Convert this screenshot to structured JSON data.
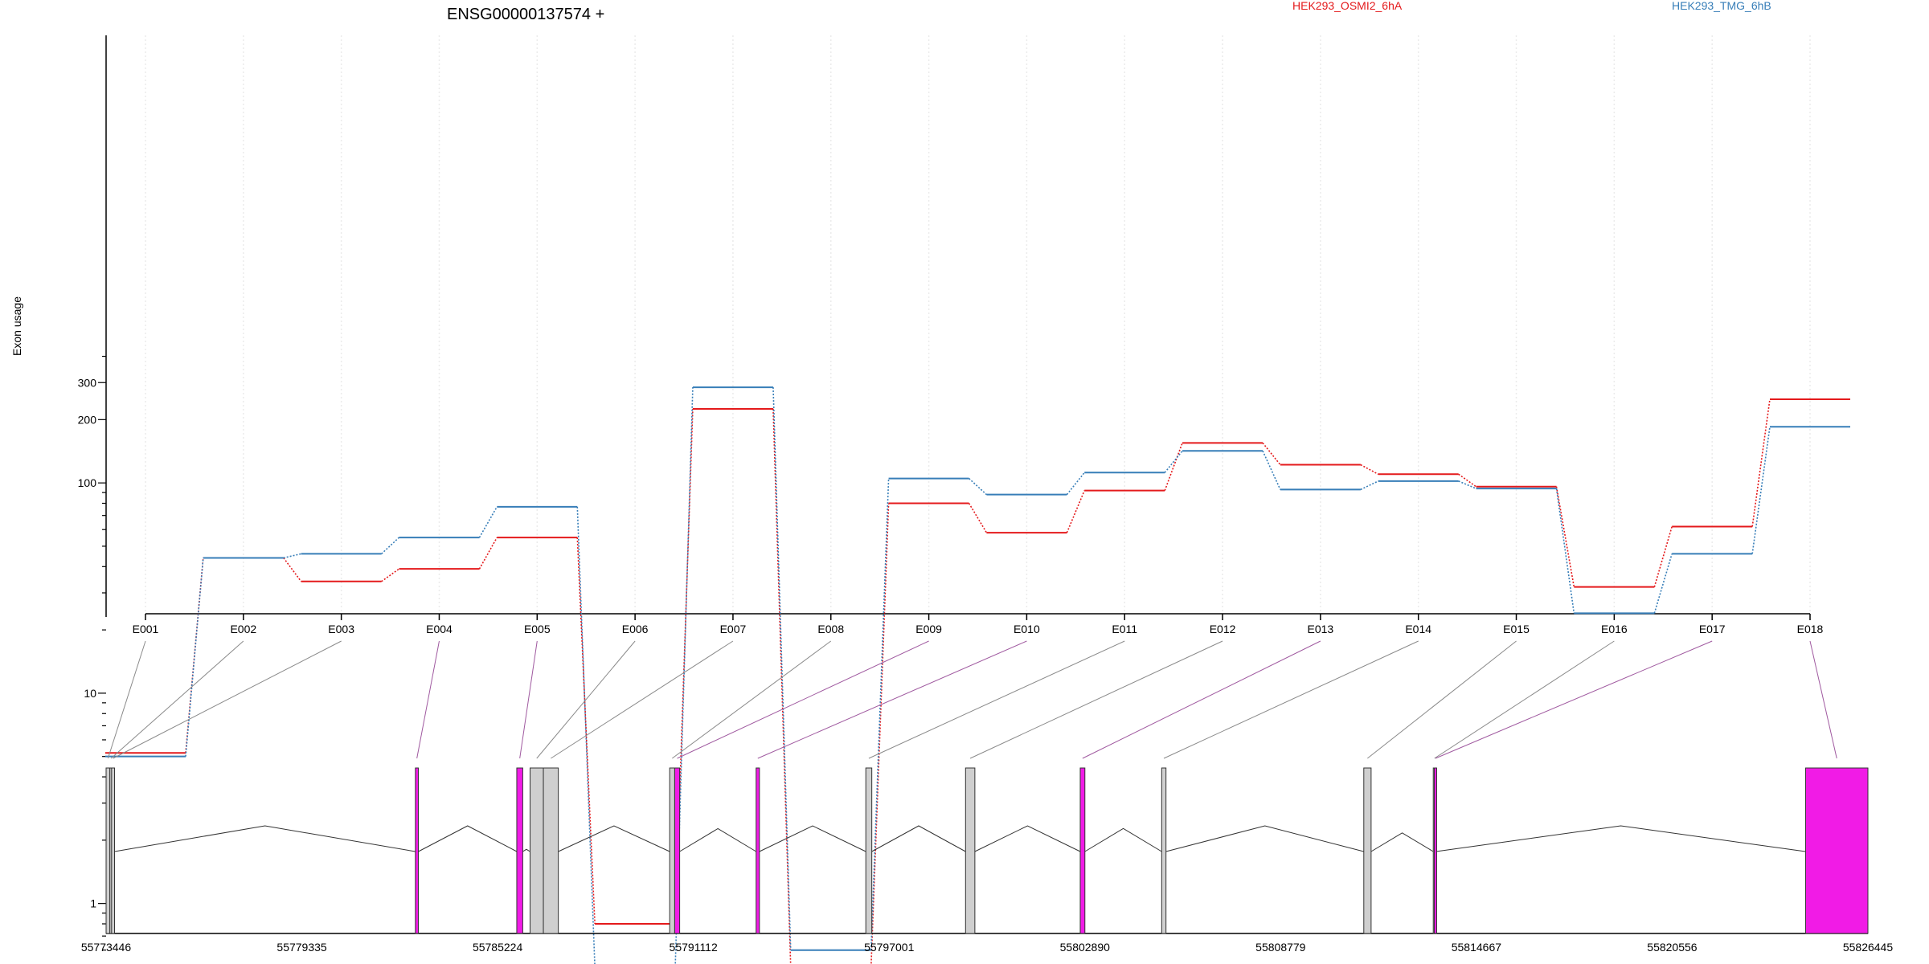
{
  "chart_data": {
    "type": "line",
    "title": "ENSG00000137574 +",
    "ylabel": "Exon usage",
    "xlabel": "",
    "y_scale": "log",
    "ylim": [
      0.5,
      400
    ],
    "y_ticks": [
      1,
      10,
      100,
      200,
      300
    ],
    "grid": "vertical, light",
    "legend_position": "top-right",
    "categories": [
      "E001",
      "E002",
      "E003",
      "E004",
      "E005",
      "E006",
      "E007",
      "E008",
      "E009",
      "E010",
      "E011",
      "E012",
      "E013",
      "E014",
      "E015",
      "E016",
      "E017",
      "E018"
    ],
    "series": [
      {
        "name": "HEK293_OSMI2_6hA",
        "color": "#e41a1c",
        "values": [
          5.2,
          44,
          34,
          39,
          55,
          0.8,
          225,
          0.5,
          80,
          58,
          92,
          155,
          122,
          110,
          96,
          32,
          62,
          250
        ]
      },
      {
        "name": "HEK293_TMG_6hB",
        "color": "#377eb8",
        "values": [
          5.0,
          44,
          46,
          55,
          77,
          0.5,
          285,
          0.6,
          105,
          88,
          112,
          142,
          93,
          102,
          94,
          24,
          46,
          185
        ]
      }
    ],
    "gene_model": {
      "axis_labels": [
        "55773446",
        "55779335",
        "55785224",
        "55791112",
        "55797001",
        "55802890",
        "55808779",
        "55814667",
        "55820556",
        "55826445"
      ],
      "axis_range": [
        55773446,
        55826445
      ],
      "exon_color_significant": "#f11be6",
      "exon_color_normal": "#cfcfcf",
      "exons": [
        {
          "id": "E001",
          "start": 55773446,
          "end": 55773560,
          "significant": false
        },
        {
          "id": "E002",
          "start": 55773560,
          "end": 55773610,
          "significant": false
        },
        {
          "id": "E003",
          "start": 55773610,
          "end": 55773700,
          "significant": false
        },
        {
          "id": "E004",
          "start": 55782750,
          "end": 55782840,
          "significant": true
        },
        {
          "id": "E005",
          "start": 55785800,
          "end": 55785980,
          "significant": true
        },
        {
          "id": "E006",
          "start": 55786200,
          "end": 55786600,
          "significant": false
        },
        {
          "id": "E007",
          "start": 55786600,
          "end": 55787050,
          "significant": false
        },
        {
          "id": "E008",
          "start": 55790400,
          "end": 55790550,
          "significant": false
        },
        {
          "id": "E009",
          "start": 55790550,
          "end": 55790700,
          "significant": true
        },
        {
          "id": "E010",
          "start": 55793000,
          "end": 55793100,
          "significant": true
        },
        {
          "id": "E011",
          "start": 55796300,
          "end": 55796480,
          "significant": false
        },
        {
          "id": "E012",
          "start": 55799300,
          "end": 55799580,
          "significant": false
        },
        {
          "id": "E013",
          "start": 55802750,
          "end": 55802890,
          "significant": true
        },
        {
          "id": "E014",
          "start": 55805200,
          "end": 55805330,
          "significant": false
        },
        {
          "id": "E015",
          "start": 55811280,
          "end": 55811500,
          "significant": false
        },
        {
          "id": "E016",
          "start": 55813370,
          "end": 55813400,
          "significant": false
        },
        {
          "id": "E017",
          "start": 55813400,
          "end": 55813450,
          "significant": true
        },
        {
          "id": "E018",
          "start": 55824570,
          "end": 55826445,
          "significant": true
        }
      ]
    }
  }
}
